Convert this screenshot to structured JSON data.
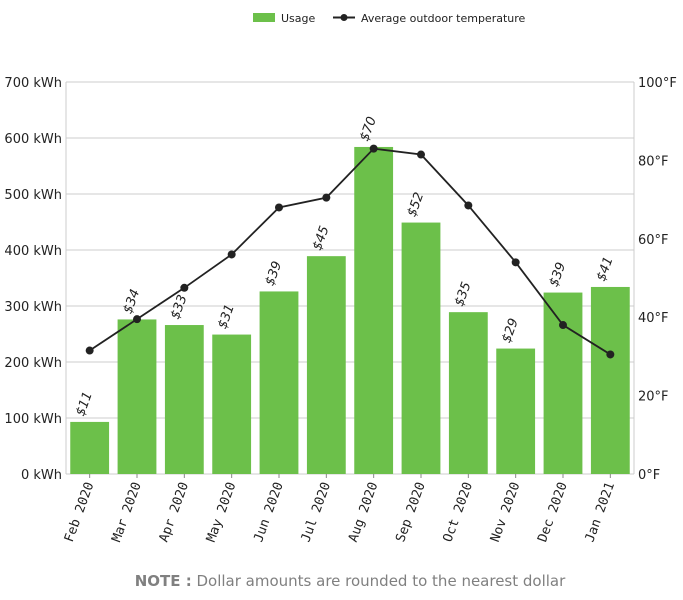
{
  "chart_data": {
    "type": "bar",
    "categories": [
      "Feb 2020",
      "Mar 2020",
      "Apr 2020",
      "May 2020",
      "Jun 2020",
      "Jul 2020",
      "Aug 2020",
      "Sep 2020",
      "Oct 2020",
      "Nov 2020",
      "Dec 2020",
      "Jan 2021"
    ],
    "series": [
      {
        "name": "Usage",
        "type": "bar",
        "axis": "left",
        "values": [
          93,
          276,
          266,
          249,
          326,
          389,
          584,
          449,
          289,
          224,
          324,
          334
        ],
        "labels": [
          "$11",
          "$34",
          "$33",
          "$31",
          "$39",
          "$45",
          "$70",
          "$52",
          "$35",
          "$29",
          "$39",
          "$41"
        ],
        "color": "#6cc04a"
      },
      {
        "name": "Average outdoor temperature",
        "type": "line",
        "axis": "right",
        "values": [
          31.5,
          39.5,
          47.5,
          56,
          68,
          70.5,
          83,
          81.5,
          68.5,
          54,
          38,
          30.5
        ],
        "color": "#222222"
      }
    ],
    "left_axis": {
      "ylim": [
        0,
        700
      ],
      "ticks": [
        0,
        100,
        200,
        300,
        400,
        500,
        600,
        700
      ],
      "tick_labels": [
        "0 kWh",
        "100 kWh",
        "200 kWh",
        "300 kWh",
        "400 kWh",
        "500 kWh",
        "600 kWh",
        "700 kWh"
      ]
    },
    "right_axis": {
      "ylim": [
        0,
        100
      ],
      "ticks": [
        0,
        20,
        40,
        60,
        80,
        100
      ],
      "tick_labels": [
        "0°F",
        "20°F",
        "40°F",
        "60°F",
        "80°F",
        "100°F"
      ]
    },
    "grid": true,
    "legend_position": "top-center",
    "legend": [
      "Usage",
      "Average outdoor temperature"
    ]
  },
  "note": {
    "label": "NOTE :",
    "text": "Dollar amounts are rounded to the nearest dollar"
  },
  "colors": {
    "bar": "#6cc04a",
    "line": "#222222",
    "grid": "#cccccc",
    "note": "#808080"
  }
}
